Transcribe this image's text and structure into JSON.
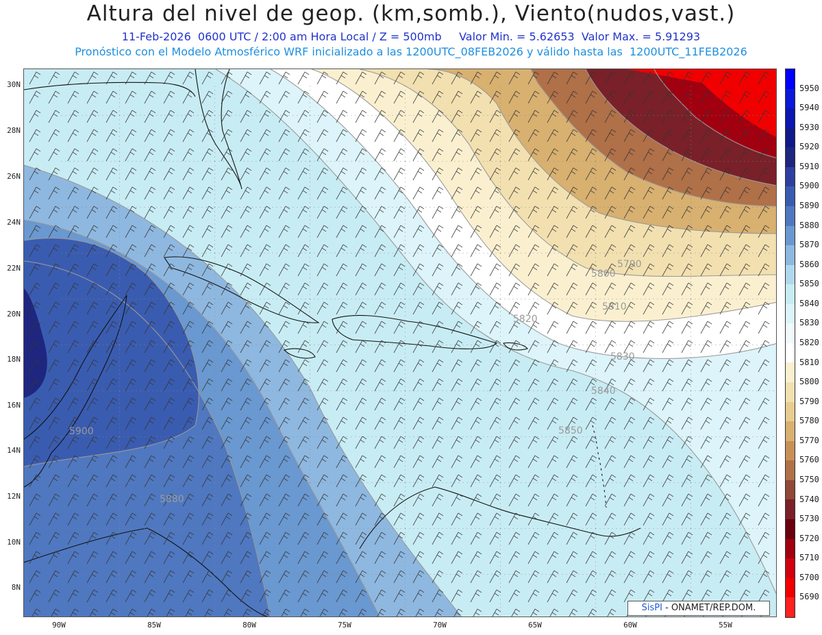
{
  "title": "Altura del nivel de geop. (km,somb.), Viento(nudos,vast.)",
  "subtitle1": "11-Feb-2026  0600 UTC / 2:00 am Hora Local / Z = 500mb     Valor Min. = 5.62653  Valor Max. = 5.91293",
  "subtitle2": "Pronóstico con el Modelo Atmosférico WRF inicializado a las 1200UTC_08FEB2026 y válido hasta las  1200UTC_11FEB2026",
  "lat_labels": [
    "30N",
    "28N",
    "26N",
    "24N",
    "22N",
    "20N",
    "18N",
    "16N",
    "14N",
    "12N",
    "10N",
    "8N"
  ],
  "lon_labels": [
    "90W",
    "85W",
    "80W",
    "75W",
    "70W",
    "65W",
    "60W",
    "55W"
  ],
  "contour_labels": [
    "5790",
    "5800",
    "5810",
    "5820",
    "5830",
    "5840",
    "5850",
    "5900",
    "5880"
  ],
  "colorbar": {
    "labels": [
      "5950",
      "5940",
      "5930",
      "5920",
      "5910",
      "5900",
      "5890",
      "5880",
      "5870",
      "5860",
      "5850",
      "5840",
      "5830",
      "5820",
      "5810",
      "5800",
      "5790",
      "5780",
      "5770",
      "5760",
      "5750",
      "5740",
      "5730",
      "5720",
      "5710",
      "5700",
      "5690"
    ],
    "colors": [
      "#0000ff",
      "#0a1ad8",
      "#0c16b0",
      "#101a8a",
      "#1e2680",
      "#2e3fa0",
      "#3a5cb0",
      "#4f78c0",
      "#6a98d0",
      "#8eb8e0",
      "#b0d8ec",
      "#c8ecf4",
      "#dcf4fa",
      "#f0fafc",
      "#ffffff",
      "#faf0d0",
      "#f2e0b0",
      "#e8cc90",
      "#d8b070",
      "#c89058",
      "#b07048",
      "#904838",
      "#7a2028",
      "#6a0010",
      "#a00010",
      "#d00010",
      "#f00000",
      "#ff2020"
    ]
  },
  "credit": {
    "logo": "SisPI",
    "text": " - ONAMET/REP.DOM."
  }
}
